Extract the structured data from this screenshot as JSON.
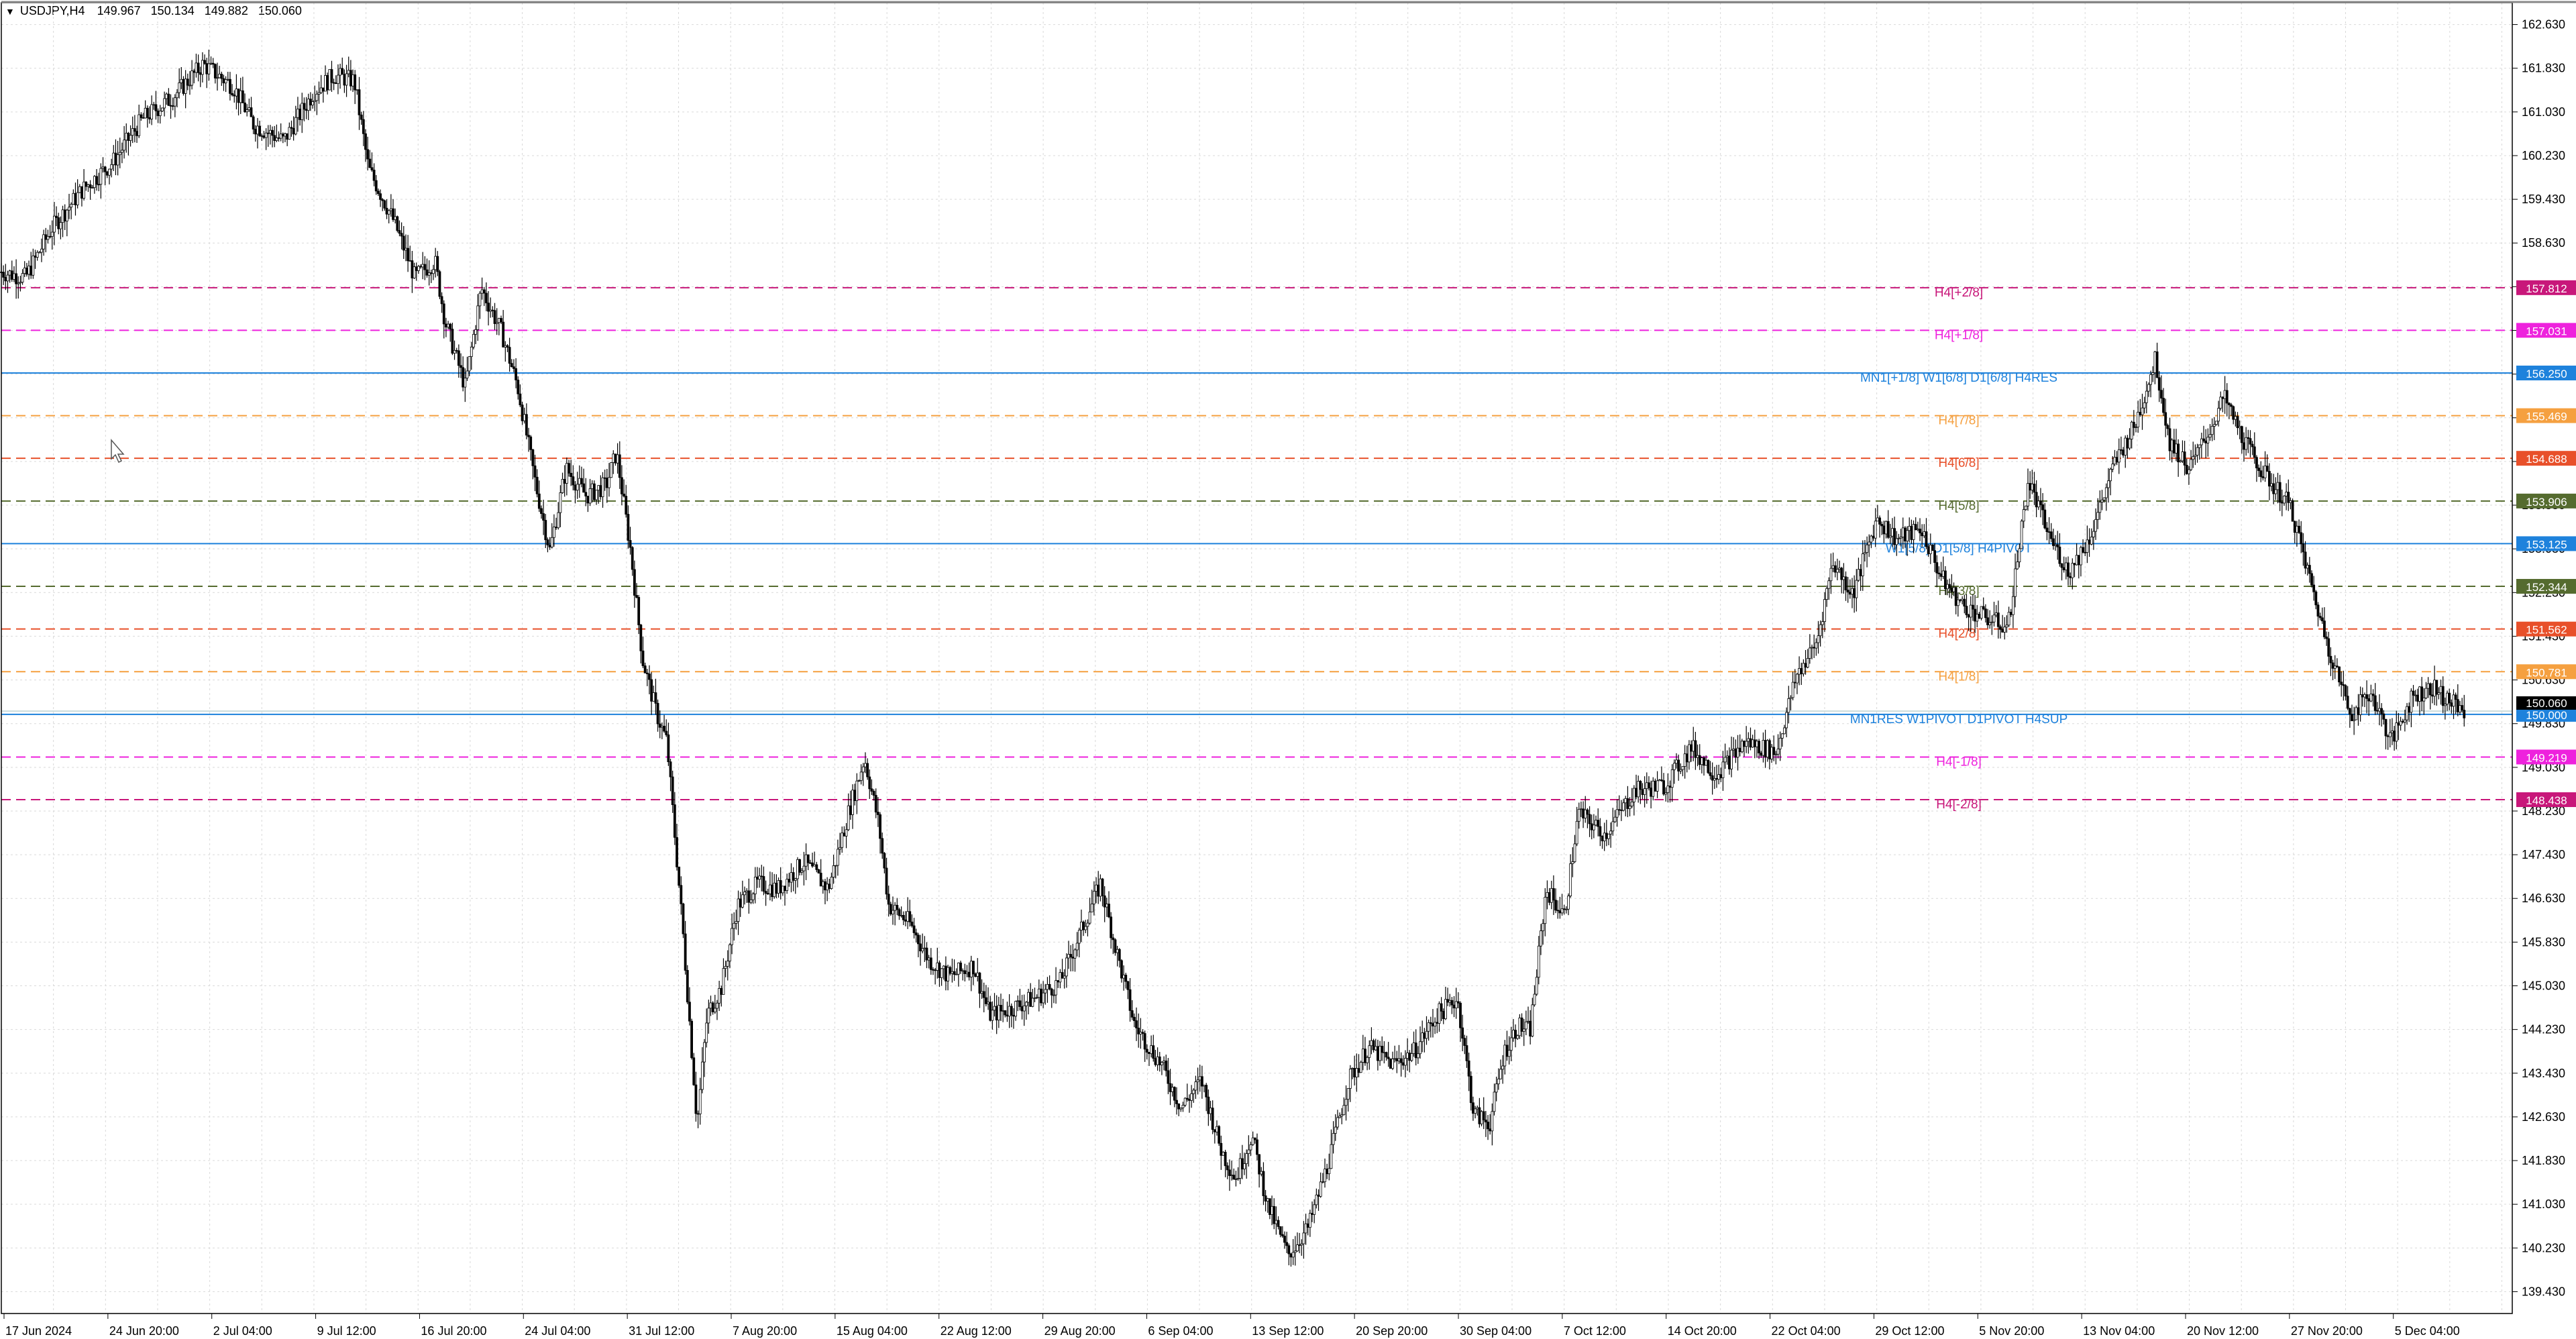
{
  "header": {
    "symbol": "USDJPY,H4",
    "open": "149.967",
    "high": "150.134",
    "low": "149.882",
    "close": "150.060"
  },
  "colors": {
    "grid": "#d9d9d9",
    "axis": "#000000",
    "candle": "#000000",
    "blue_level": "#1e82dc",
    "pink_level": "#ee22dd",
    "magenta_label": "#c8177a",
    "orange_level": "#f5a040",
    "red_level": "#e8502a",
    "olive_level": "#556b2f",
    "current_price": "#000000"
  },
  "chart_data": {
    "type": "candlestick",
    "symbol": "USDJPY",
    "timeframe": "H4",
    "ylim": [
      139.03,
      163.03
    ],
    "y_ticks": [
      "162.630",
      "161.830",
      "161.030",
      "160.230",
      "159.430",
      "158.630",
      "157.830",
      "157.030",
      "156.230",
      "155.430",
      "154.630",
      "153.830",
      "153.030",
      "152.230",
      "151.430",
      "150.630",
      "149.830",
      "149.030",
      "148.230",
      "147.430",
      "146.630",
      "145.830",
      "145.030",
      "144.230",
      "143.430",
      "142.630",
      "141.830",
      "141.030",
      "140.230",
      "139.430"
    ],
    "x_labels": [
      "17 Jun 2024",
      "24 Jun 20:00",
      "2 Jul 04:00",
      "9 Jul 12:00",
      "16 Jul 20:00",
      "24 Jul 04:00",
      "31 Jul 12:00",
      "7 Aug 20:00",
      "15 Aug 04:00",
      "22 Aug 12:00",
      "29 Aug 20:00",
      "6 Sep 04:00",
      "13 Sep 12:00",
      "20 Sep 20:00",
      "30 Sep 04:00",
      "7 Oct 12:00",
      "14 Oct 20:00",
      "22 Oct 04:00",
      "29 Oct 12:00",
      "5 Nov 20:00",
      "13 Nov 04:00",
      "20 Nov 12:00",
      "27 Nov 20:00",
      "5 Dec 04:00"
    ],
    "price_path": [
      [
        0,
        158.1
      ],
      [
        12,
        158.0
      ],
      [
        25,
        158.9
      ],
      [
        40,
        159.6
      ],
      [
        55,
        160.1
      ],
      [
        70,
        160.9
      ],
      [
        85,
        161.3
      ],
      [
        100,
        161.9
      ],
      [
        115,
        161.5
      ],
      [
        125,
        160.8
      ],
      [
        140,
        160.5
      ],
      [
        155,
        161.4
      ],
      [
        165,
        161.7
      ],
      [
        175,
        161.6
      ],
      [
        182,
        160.0
      ],
      [
        195,
        159.0
      ],
      [
        205,
        158.0
      ],
      [
        215,
        158.3
      ],
      [
        220,
        157.2
      ],
      [
        230,
        156.0
      ],
      [
        238,
        157.8
      ],
      [
        248,
        157.0
      ],
      [
        256,
        156.0
      ],
      [
        265,
        154.2
      ],
      [
        272,
        153.0
      ],
      [
        280,
        154.5
      ],
      [
        290,
        154.0
      ],
      [
        300,
        154.2
      ],
      [
        305,
        154.8
      ],
      [
        312,
        153.0
      ],
      [
        318,
        151.0
      ],
      [
        325,
        150.0
      ],
      [
        330,
        149.5
      ],
      [
        338,
        146.0
      ],
      [
        345,
        142.5
      ],
      [
        350,
        144.5
      ],
      [
        357,
        145.0
      ],
      [
        365,
        146.5
      ],
      [
        375,
        146.9
      ],
      [
        385,
        146.8
      ],
      [
        398,
        147.3
      ],
      [
        410,
        146.8
      ],
      [
        420,
        148.2
      ],
      [
        428,
        149.2
      ],
      [
        435,
        148.0
      ],
      [
        440,
        146.5
      ],
      [
        450,
        146.2
      ],
      [
        460,
        145.5
      ],
      [
        470,
        145.2
      ],
      [
        482,
        145.4
      ],
      [
        490,
        144.5
      ],
      [
        500,
        144.6
      ],
      [
        512,
        144.8
      ],
      [
        525,
        145.1
      ],
      [
        535,
        146.0
      ],
      [
        545,
        146.9
      ],
      [
        552,
        145.8
      ],
      [
        562,
        144.3
      ],
      [
        575,
        143.6
      ],
      [
        585,
        142.8
      ],
      [
        595,
        143.3
      ],
      [
        605,
        142.0
      ],
      [
        612,
        141.5
      ],
      [
        620,
        142.3
      ],
      [
        628,
        141.0
      ],
      [
        638,
        140.1
      ],
      [
        648,
        140.6
      ],
      [
        658,
        141.8
      ],
      [
        668,
        143.3
      ],
      [
        678,
        143.9
      ],
      [
        690,
        143.6
      ],
      [
        700,
        143.8
      ],
      [
        712,
        144.5
      ],
      [
        722,
        144.8
      ],
      [
        730,
        142.7
      ],
      [
        738,
        142.5
      ],
      [
        745,
        143.8
      ],
      [
        752,
        144.3
      ],
      [
        758,
        144.2
      ],
      [
        766,
        146.8
      ],
      [
        775,
        146.3
      ],
      [
        782,
        148.2
      ],
      [
        795,
        147.8
      ],
      [
        810,
        148.6
      ],
      [
        825,
        148.7
      ],
      [
        838,
        149.4
      ],
      [
        850,
        148.9
      ],
      [
        865,
        149.5
      ],
      [
        880,
        149.3
      ],
      [
        890,
        150.7
      ],
      [
        900,
        151.3
      ],
      [
        908,
        152.8
      ],
      [
        918,
        152.2
      ],
      [
        930,
        153.6
      ],
      [
        940,
        153.2
      ],
      [
        952,
        153.4
      ],
      [
        962,
        152.5
      ],
      [
        972,
        152.0
      ],
      [
        982,
        151.8
      ],
      [
        995,
        151.6
      ],
      [
        1005,
        154.3
      ],
      [
        1015,
        153.3
      ],
      [
        1025,
        152.6
      ],
      [
        1035,
        153.2
      ],
      [
        1048,
        154.6
      ],
      [
        1058,
        155.3
      ],
      [
        1068,
        156.5
      ],
      [
        1075,
        155.0
      ],
      [
        1085,
        154.5
      ],
      [
        1095,
        155.2
      ],
      [
        1102,
        155.8
      ],
      [
        1112,
        155.0
      ],
      [
        1122,
        154.4
      ],
      [
        1135,
        153.8
      ],
      [
        1148,
        152.0
      ],
      [
        1155,
        151.1
      ],
      [
        1165,
        150.0
      ],
      [
        1175,
        150.4
      ],
      [
        1185,
        149.5
      ],
      [
        1195,
        150.3
      ],
      [
        1205,
        150.5
      ],
      [
        1215,
        150.2
      ],
      [
        1222,
        150.06
      ]
    ]
  },
  "levels": [
    {
      "label": "H4[+2/8]",
      "value": "157.812",
      "style": "pink-dash",
      "text_color": "#c8177a",
      "box_color": "#c8177a"
    },
    {
      "label": "H4[+1/8]",
      "value": "157.031",
      "style": "pink-dash",
      "text_color": "#ee22dd",
      "box_color": "#ee22dd"
    },
    {
      "label": "MN1[+1/8] W1[6/8] D1[6/8] H4RES",
      "value": "156.250",
      "style": "blue-solid",
      "text_color": "#1e82dc",
      "box_color": "#1e82dc"
    },
    {
      "label": "H4[7/8]",
      "value": "155.469",
      "style": "orange-dash",
      "text_color": "#f5a040",
      "box_color": "#f5a040"
    },
    {
      "label": "H4[6/8]",
      "value": "154.688",
      "style": "red-dash",
      "text_color": "#e8502a",
      "box_color": "#e8502a"
    },
    {
      "label": "H4[5/8]",
      "value": "153.906",
      "style": "olive-dash",
      "text_color": "#556b2f",
      "box_color": "#556b2f"
    },
    {
      "label": "W1[5/8] D1[5/8] H4PIVOT",
      "value": "153.125",
      "style": "blue-solid",
      "text_color": "#1e82dc",
      "box_color": "#1e82dc"
    },
    {
      "label": "H4[3/8]",
      "value": "152.344",
      "style": "olive-dash",
      "text_color": "#556b2f",
      "box_color": "#556b2f"
    },
    {
      "label": "H4[2/8]",
      "value": "151.562",
      "style": "red-dash",
      "text_color": "#e8502a",
      "box_color": "#e8502a"
    },
    {
      "label": "H4[1/8]",
      "value": "150.781",
      "style": "orange-dash",
      "text_color": "#f5a040",
      "box_color": "#f5a040"
    },
    {
      "label": "MN1RES W1PIVOT D1PIVOT H4SUP",
      "value": "150.000",
      "style": "blue-solid",
      "text_color": "#1e82dc",
      "box_color": "#1e82dc"
    },
    {
      "label": "H4[-1/8]",
      "value": "149.219",
      "style": "pink-dash",
      "text_color": "#ee22dd",
      "box_color": "#ee22dd"
    },
    {
      "label": "H4[-2/8]",
      "value": "148.438",
      "style": "pink-dash",
      "text_color": "#c8177a",
      "box_color": "#c8177a"
    }
  ],
  "current_price": "150.060"
}
